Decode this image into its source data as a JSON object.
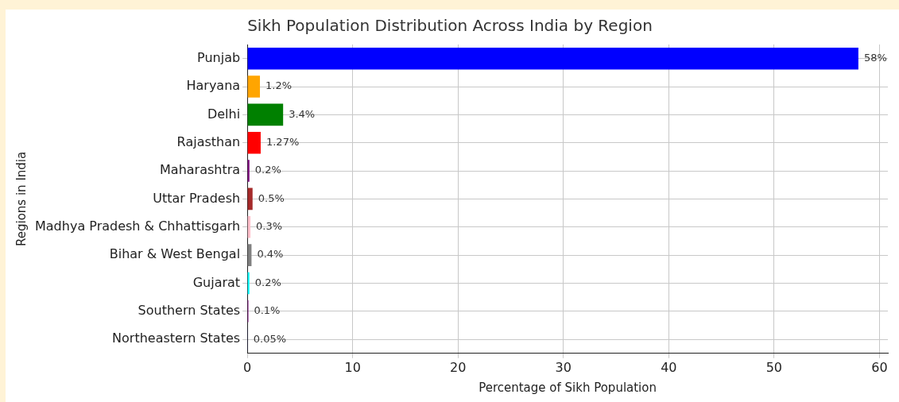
{
  "chart_data": {
    "type": "bar",
    "orientation": "horizontal",
    "title": "Sikh Population Distribution Across India by Region",
    "xlabel": "Percentage of Sikh Population",
    "ylabel": "Regions in India",
    "categories": [
      "Punjab",
      "Haryana",
      "Delhi",
      "Rajasthan",
      "Maharashtra",
      "Uttar Pradesh",
      "Madhya Pradesh & Chhattisgarh",
      "Bihar & West Bengal",
      "Gujarat",
      "Southern States",
      "Northeastern States"
    ],
    "values": [
      58,
      1.2,
      3.4,
      1.27,
      0.2,
      0.5,
      0.3,
      0.4,
      0.2,
      0.1,
      0.05
    ],
    "value_labels": [
      "58%",
      "1.2%",
      "3.4%",
      "1.27%",
      "0.2%",
      "0.5%",
      "0.3%",
      "0.4%",
      "0.2%",
      "0.1%",
      "0.05%"
    ],
    "colors": [
      "#0000ff",
      "#ffa500",
      "#008000",
      "#ff0000",
      "#800080",
      "#a52a2a",
      "#ffc0cb",
      "#808080",
      "#00ffff",
      "#800080",
      "#000080"
    ],
    "xlim": [
      0,
      60.8
    ],
    "xticks": [
      0,
      10,
      20,
      30,
      40,
      50,
      60
    ],
    "grid": true
  }
}
